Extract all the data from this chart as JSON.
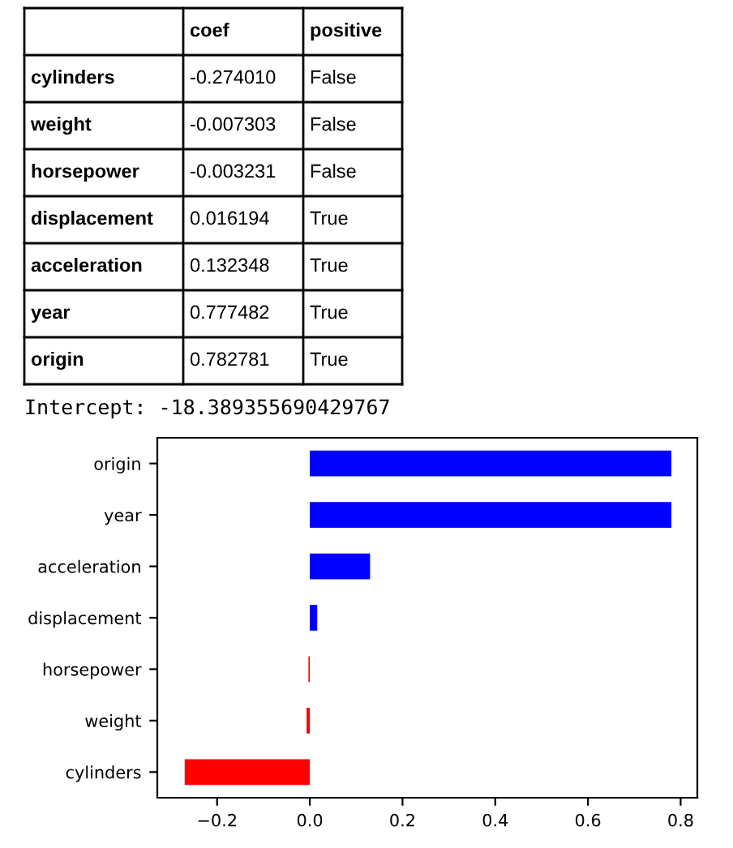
{
  "chart_data": [
    {
      "type": "other",
      "annotations": [
        "coef",
        "positive",
        "cylinders",
        "-0.274010",
        "False",
        "weight",
        "-0.007303",
        "False",
        "horsepower",
        "-0.003231",
        "False",
        "displacement",
        "0.016194",
        "True",
        "acceleration",
        "0.132348",
        "True",
        "year",
        "0.777482",
        "True",
        "origin",
        "0.782781",
        "True",
        "Intercept: -18.389355690429767"
      ]
    },
    {
      "type": "bar",
      "orientation": "horizontal",
      "categories": [
        "origin",
        "year",
        "acceleration",
        "displacement",
        "horsepower",
        "weight",
        "cylinders"
      ],
      "values": [
        0.78,
        0.78,
        0.13,
        0.016,
        -0.003,
        -0.007,
        -0.27
      ],
      "colors": [
        "#0000ff",
        "#0000ff",
        "#0000ff",
        "#0000ff",
        "#ff0000",
        "#ff0000",
        "#ff0000"
      ],
      "xlim": [
        -0.329,
        0.836
      ],
      "xticks": [
        {
          "value": -0.2,
          "label": "−0.2"
        },
        {
          "value": 0,
          "label": "0.0"
        },
        0.2,
        0.4,
        0.6,
        0.8
      ],
      "grid": false,
      "legend": false
    }
  ]
}
